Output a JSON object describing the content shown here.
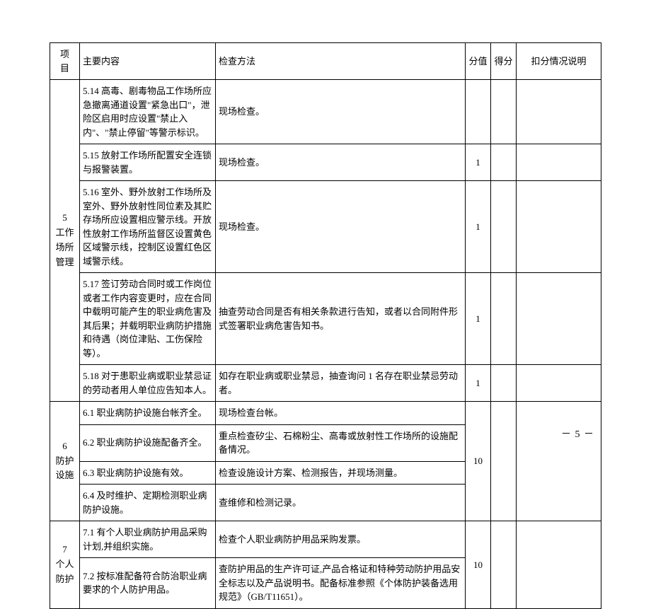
{
  "header": {
    "project": "项　目",
    "content": "主要内容",
    "method": "检查方法",
    "score": "分值",
    "got": "得分",
    "note": "扣分情况说明"
  },
  "sections": [
    {
      "project_num": "5",
      "project_name": "工作场所管理",
      "rows": [
        {
          "content": "5.14 高毒、剧毒物品工作场所应急撤离通道设置\"紧急出口\"，泄险区启用时应设置\"禁止入内\"、\"禁止停留\"等警示标识。",
          "method": "现场检查。",
          "score": ""
        },
        {
          "content": "5.15 放射工作场所配置安全连锁与报警装置。",
          "method": "现场检查。",
          "score": "1"
        },
        {
          "content": "5.16 室外、野外放射工作场所及室外、野外放射性同位素及其贮存场所应设置相应警示线。开放性放射工作场所监督区设置黄色区域警示线，控制区设置红色区域警示线。",
          "method": "现场检查。",
          "score": "1"
        },
        {
          "content": "5.17 签订劳动合同时或工作岗位或者工作内容变更时，应在合同中载明可能产生的职业病危害及其后果；并载明职业病防护措施和待遇（岗位津贴、工伤保险等）。",
          "method": "抽查劳动合同是否有相关条款进行告知，或者以合同附件形式签署职业病危害告知书。",
          "score": "1"
        },
        {
          "content": "5.18 对于患职业病或职业禁忌证的劳动者用人单位应告知本人。",
          "method": "如存在职业病或职业禁忌，抽查询问 1 名存在职业禁忌劳动者。",
          "score": "1"
        }
      ]
    },
    {
      "project_num": "6",
      "project_name": "防护设施",
      "score": "10",
      "rows": [
        {
          "content": "6.1 职业病防护设施台帐齐全。",
          "method": "现场检查台帐。"
        },
        {
          "content": "6.2 职业病防护设施配备齐全。",
          "method": "重点检查矽尘、石棉粉尘、高毒或放射性工作场所的设施配备情况。"
        },
        {
          "content": "6.3 职业病防护设施有效。",
          "method": "检查设施设计方案、检测报告，并现场测量。"
        },
        {
          "content": "6.4 及时维护、定期检测职业病防护设施。",
          "method": "查维修和检测记录。"
        }
      ]
    },
    {
      "project_num": "7",
      "project_name": "个人防护",
      "score": "10",
      "rows": [
        {
          "content": "7.1 有个人职业病防护用品采购计划,并组织实施。",
          "method": "检查个人职业病防护用品采购发票。"
        },
        {
          "content": "7.2 按标准配备符合防治职业病要求的个人防护用品。",
          "method": "查防护用品的生产许可证,产品合格证和特种劳动防护用品安全标志以及产品说明书。配备标准参照《个体防护装备选用规范》（GB/T11651）。"
        }
      ]
    }
  ],
  "page_number": "－ 5 －"
}
